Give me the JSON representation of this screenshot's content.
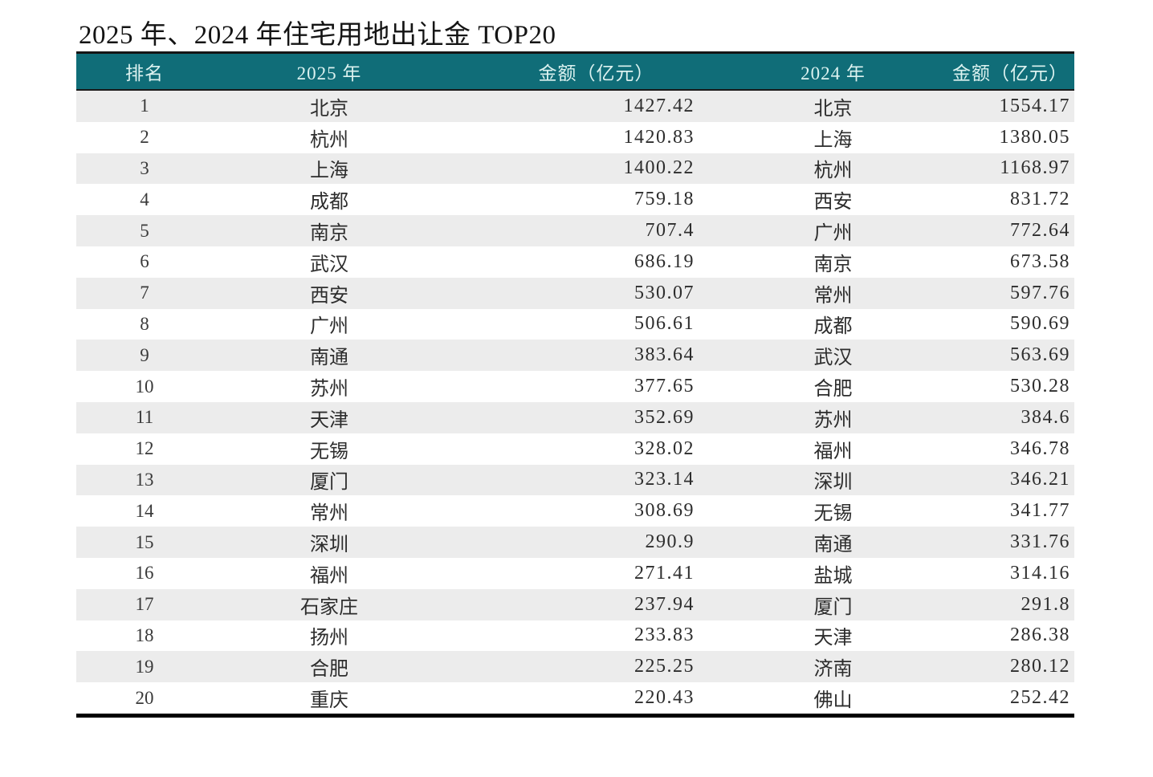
{
  "title": "2025 年、2024 年住宅用地出让金 TOP20",
  "colors": {
    "header_bg": "#106d78",
    "header_text": "#dcf2f0",
    "row_stripe": "#ececec",
    "row_plain": "#ffffff",
    "table_border": "#000000",
    "body_text": "#2d2d2d"
  },
  "chart_data": {
    "type": "table",
    "title": "2025 年、2024 年住宅用地出让金 TOP20",
    "columns": [
      "排名",
      "2025 年",
      "金额（亿元）",
      "2024 年",
      "金额（亿元）"
    ],
    "rows": [
      [
        1,
        "北京",
        1427.42,
        "北京",
        1554.17
      ],
      [
        2,
        "杭州",
        1420.83,
        "上海",
        1380.05
      ],
      [
        3,
        "上海",
        1400.22,
        "杭州",
        1168.97
      ],
      [
        4,
        "成都",
        759.18,
        "西安",
        831.72
      ],
      [
        5,
        "南京",
        707.4,
        "广州",
        772.64
      ],
      [
        6,
        "武汉",
        686.19,
        "南京",
        673.58
      ],
      [
        7,
        "西安",
        530.07,
        "常州",
        597.76
      ],
      [
        8,
        "广州",
        506.61,
        "成都",
        590.69
      ],
      [
        9,
        "南通",
        383.64,
        "武汉",
        563.69
      ],
      [
        10,
        "苏州",
        377.65,
        "合肥",
        530.28
      ],
      [
        11,
        "天津",
        352.69,
        "苏州",
        384.6
      ],
      [
        12,
        "无锡",
        328.02,
        "福州",
        346.78
      ],
      [
        13,
        "厦门",
        323.14,
        "深圳",
        346.21
      ],
      [
        14,
        "常州",
        308.69,
        "无锡",
        341.77
      ],
      [
        15,
        "深圳",
        290.9,
        "南通",
        331.76
      ],
      [
        16,
        "福州",
        271.41,
        "盐城",
        314.16
      ],
      [
        17,
        "石家庄",
        237.94,
        "厦门",
        291.8
      ],
      [
        18,
        "扬州",
        233.83,
        "天津",
        286.38
      ],
      [
        19,
        "合肥",
        225.25,
        "济南",
        280.12
      ],
      [
        20,
        "重庆",
        220.43,
        "佛山",
        252.42
      ]
    ]
  }
}
